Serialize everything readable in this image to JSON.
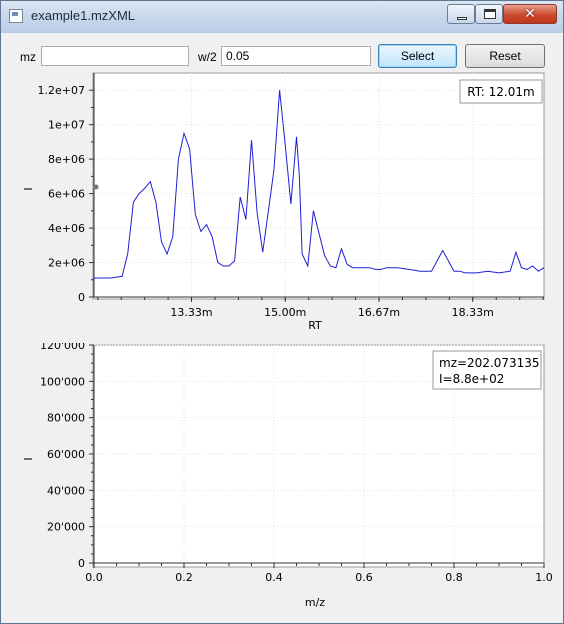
{
  "window": {
    "title": "example1.mzXML",
    "close_glyph": "✕"
  },
  "toolbar": {
    "mz_label": "mz",
    "mz_value": "",
    "w2_label": "w/2",
    "w2_value": "0.05",
    "select_label": "Select",
    "reset_label": "Reset"
  },
  "chrom_plot": {
    "xlabel": "RT",
    "ylabel": "I",
    "readout": "RT: 12.01m",
    "xticks": [
      "13.33m",
      "15.00m",
      "16.67m",
      "18.33m"
    ],
    "yticks": [
      "0",
      "2e+06",
      "4e+06",
      "6e+06",
      "8e+06",
      "1e+07",
      "1.2e+07"
    ],
    "line_color": "#1f1fd6"
  },
  "spectrum_plot": {
    "xlabel": "m/z",
    "ylabel": "I",
    "readout_mz": "mz=202.073135",
    "readout_i": "I=8.8e+02",
    "xticks": [
      "0.0",
      "0.2",
      "0.4",
      "0.6",
      "0.8",
      "1.0"
    ],
    "yticks": [
      "0",
      "20'000",
      "40'000",
      "60'000",
      "80'000",
      "100'000",
      "120'000"
    ]
  },
  "chart_data": [
    {
      "type": "line",
      "xlabel": "RT",
      "ylabel": "I",
      "x_unit": "minutes",
      "xlim": [
        11.6,
        19.6
      ],
      "ylim": [
        0,
        13000000
      ],
      "grid": true,
      "x": [
        11.6,
        11.9,
        12.1,
        12.2,
        12.3,
        12.4,
        12.5,
        12.6,
        12.7,
        12.8,
        12.9,
        13.0,
        13.1,
        13.2,
        13.3,
        13.4,
        13.5,
        13.6,
        13.7,
        13.8,
        13.9,
        14.0,
        14.1,
        14.2,
        14.3,
        14.4,
        14.5,
        14.6,
        14.7,
        14.8,
        14.9,
        15.0,
        15.1,
        15.2,
        15.25,
        15.3,
        15.4,
        15.5,
        15.6,
        15.7,
        15.8,
        15.9,
        16.0,
        16.1,
        16.2,
        16.3,
        16.4,
        16.5,
        16.6,
        16.7,
        16.8,
        17.0,
        17.2,
        17.4,
        17.6,
        17.8,
        18.0,
        18.1,
        18.2,
        18.4,
        18.6,
        18.8,
        19.0,
        19.1,
        19.2,
        19.3,
        19.4,
        19.5,
        19.6
      ],
      "y": [
        1100000,
        1100000,
        1200000,
        2500000,
        5500000,
        6000000,
        6300000,
        6700000,
        5500000,
        3200000,
        2500000,
        3500000,
        8000000,
        9500000,
        8600000,
        4800000,
        3800000,
        4200000,
        3500000,
        2000000,
        1800000,
        1800000,
        2100000,
        5800000,
        4500000,
        9100000,
        4900000,
        2600000,
        5000000,
        7400000,
        12000000,
        8800000,
        5400000,
        9300000,
        7100000,
        2500000,
        1800000,
        5000000,
        3700000,
        2400000,
        1800000,
        1700000,
        2800000,
        1900000,
        1700000,
        1700000,
        1700000,
        1700000,
        1600000,
        1600000,
        1700000,
        1700000,
        1600000,
        1500000,
        1500000,
        2700000,
        1500000,
        1500000,
        1400000,
        1400000,
        1500000,
        1400000,
        1500000,
        2600000,
        1700000,
        1600000,
        1800000,
        1500000,
        1700000
      ]
    },
    {
      "type": "line",
      "xlabel": "m/z",
      "ylabel": "I",
      "xlim": [
        0,
        1
      ],
      "ylim": [
        0,
        120000
      ],
      "grid": true,
      "series": []
    }
  ]
}
